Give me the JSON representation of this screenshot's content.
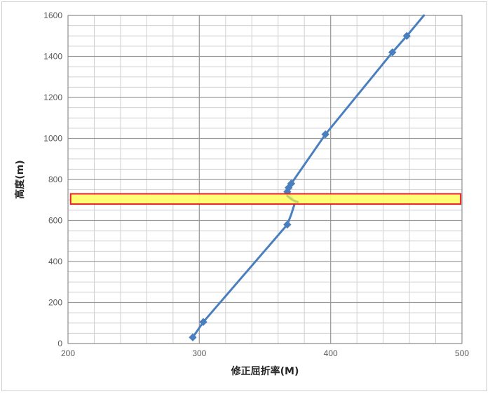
{
  "chart_data": {
    "type": "line",
    "xlabel": "修正屈折率(M)",
    "ylabel": "高度(m)",
    "xlim": [
      200,
      500
    ],
    "ylim": [
      0,
      1600
    ],
    "x_ticks": [
      200,
      300,
      400,
      500
    ],
    "y_ticks": [
      0,
      200,
      400,
      600,
      800,
      1000,
      1200,
      1400,
      1600
    ],
    "x_minor_step": 20,
    "y_minor_step": 50,
    "grid": true,
    "legend": "none",
    "series": [
      {
        "color": "#4a7fbf",
        "x": [
          295,
          303,
          367,
          370,
          373,
          367,
          368,
          370,
          396,
          447,
          458,
          471
        ],
        "y": [
          30,
          105,
          580,
          630,
          690,
          740,
          760,
          780,
          1020,
          1420,
          1500,
          1600
        ],
        "markers": [
          true,
          true,
          true,
          false,
          false,
          true,
          true,
          true,
          true,
          true,
          true,
          false
        ]
      }
    ],
    "highlight_band": {
      "y_range": [
        680,
        730
      ],
      "x_range": [
        202,
        499
      ],
      "fill": "#ffff66",
      "stroke": "#e8202a"
    },
    "highlight_segment": {
      "color": "#c3d06a",
      "x": [
        367,
        371,
        375
      ],
      "y": [
        720,
        700,
        690
      ]
    }
  }
}
